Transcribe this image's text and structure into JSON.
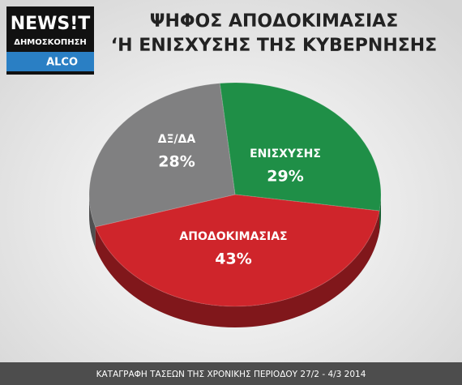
{
  "header": {
    "logo": "NEWS!T",
    "logo_subtitle": "ΔΗΜΟΣΚΟΠΗΣΗ",
    "logo_tag": "ALCO"
  },
  "chart_data": {
    "type": "pie",
    "title_lines": [
      "ΨΗΦΟΣ ΑΠΟΔΟΚΙΜΑΣΙΑΣ",
      "‘Η ΕΝΙΣΧΥΣΗΣ ΤΗΣ ΚΥΒΕΡΝΗΣΗΣ"
    ],
    "categories": [
      "ΕΝΙΣΧΥΣΗΣ",
      "ΑΠΟΔΟΚΙΜΑΣΙΑΣ",
      "ΔΞ/ΔΑ"
    ],
    "values": [
      29,
      43,
      28
    ],
    "value_labels": [
      "29%",
      "43%",
      "28%"
    ],
    "colors": [
      "#1f8f47",
      "#cf252b",
      "#808081"
    ]
  },
  "footer": "ΚΑΤΑΓΡΑΦΗ ΤΑΣΕΩΝ ΤΗΣ ΧΡΟΝΙΚΗΣ ΠΕΡΙΟΔΟΥ 27/2 - 4/3 2014"
}
